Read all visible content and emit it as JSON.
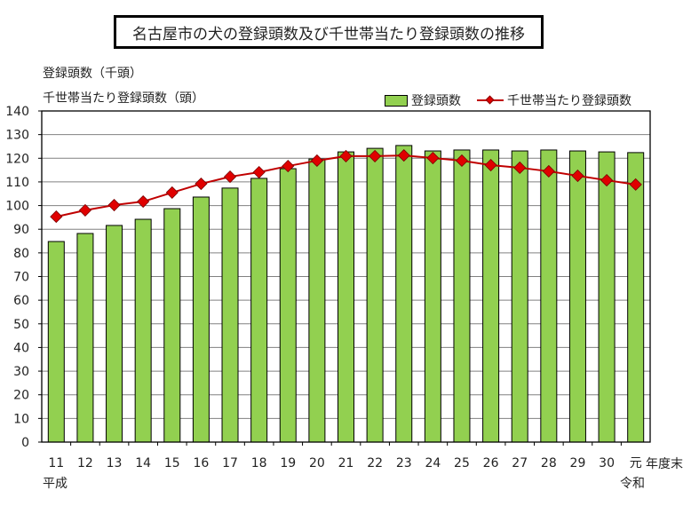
{
  "title": "名古屋市の犬の登録頭数及び千世帯当たり登録頭数の推移",
  "axis_titles": {
    "line1": "登録頭数（千頭）",
    "line2": "千世帯当たり登録頭数（頭）"
  },
  "legend": {
    "bar_label": "登録頭数",
    "line_label": "千世帯当たり登録頭数"
  },
  "x_axis": {
    "unit_label": "年度末",
    "era_start_label": "平成",
    "era_end_label": "令和"
  },
  "colors": {
    "bar": "#92d050",
    "bar_border": "#000000",
    "line": "#c00000",
    "marker": "#e00000",
    "grid": "#808080"
  },
  "chart_data": {
    "type": "bar+line",
    "title": "名古屋市の犬の登録頭数及び千世帯当たり登録頭数の推移",
    "xlabel": "年度末",
    "ylabel": "登録頭数（千頭） / 千世帯当たり登録頭数（頭）",
    "ylim": [
      0,
      140
    ],
    "yticks": [
      0,
      10,
      20,
      30,
      40,
      50,
      60,
      70,
      80,
      90,
      100,
      110,
      120,
      130,
      140
    ],
    "grid": true,
    "legend_position": "top-right",
    "categories": [
      "11",
      "12",
      "13",
      "14",
      "15",
      "16",
      "17",
      "18",
      "19",
      "20",
      "21",
      "22",
      "23",
      "24",
      "25",
      "26",
      "27",
      "28",
      "29",
      "30",
      "元"
    ],
    "series": [
      {
        "name": "登録頭数",
        "type": "bar",
        "values": [
          84.8,
          88.2,
          91.6,
          94.2,
          98.7,
          103.6,
          107.4,
          111.5,
          115.6,
          119.7,
          122.7,
          124.2,
          125.4,
          123.1,
          123.5,
          123.5,
          123.1,
          123.5,
          123.1,
          122.7,
          122.4
        ]
      },
      {
        "name": "千世帯当たり登録頭数",
        "type": "line",
        "values": [
          95.3,
          98.0,
          100.2,
          101.7,
          105.5,
          109.2,
          112.2,
          114.1,
          116.7,
          119.0,
          120.9,
          120.9,
          121.2,
          120.1,
          119.0,
          117.1,
          116.0,
          114.5,
          112.6,
          110.7,
          108.9
        ]
      }
    ]
  }
}
